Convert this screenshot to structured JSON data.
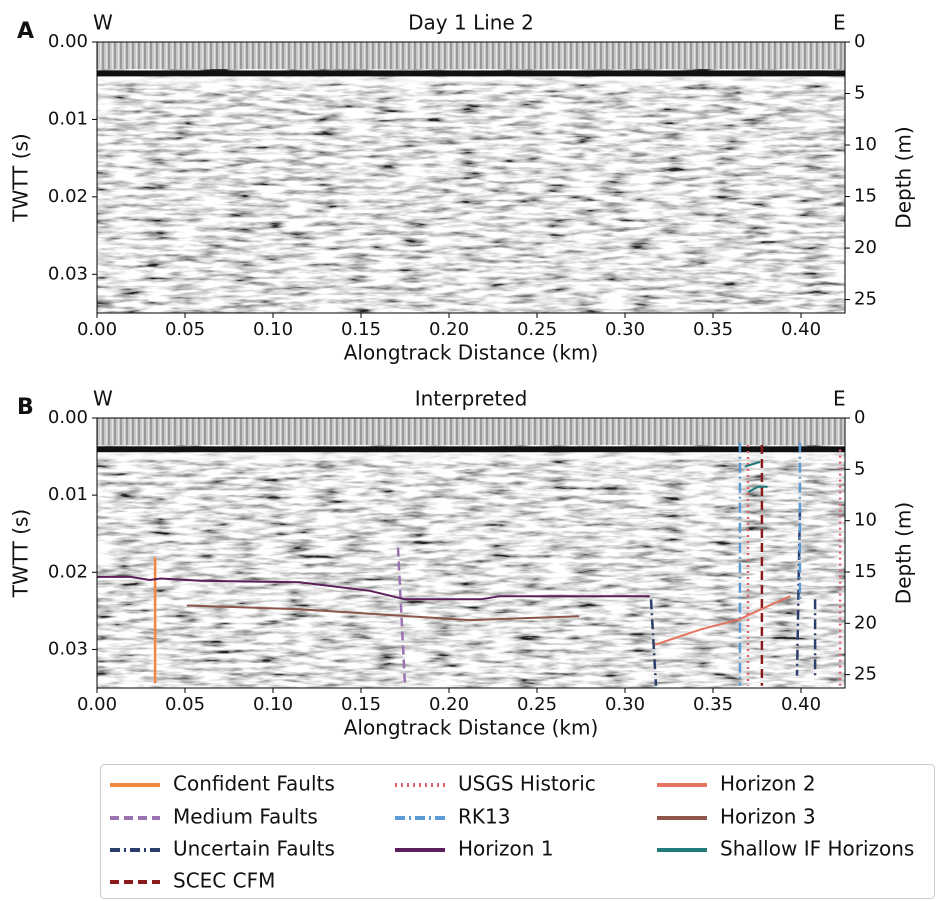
{
  "chart_data": [
    {
      "type": "line",
      "label": "A",
      "title": "Day 1 Line 2",
      "left_label": "W",
      "right_label": "E",
      "xlabel": "Alongtrack Distance (km)",
      "ylabel": "TWTT (s)",
      "y2label": "Depth (m)",
      "xlim": [
        0,
        0.425
      ],
      "xticks": [
        {
          "value": 0,
          "label": "0.00"
        },
        0.05,
        {
          "value": 0.1,
          "label": "0.10"
        },
        0.15,
        {
          "value": 0.2,
          "label": "0.20"
        },
        0.25,
        {
          "value": 0.3,
          "label": "0.30"
        },
        0.35,
        {
          "value": 0.4,
          "label": "0.40"
        }
      ],
      "ylim": [
        0.035,
        0
      ],
      "yticks": [
        {
          "value": 0,
          "label": "0.00"
        },
        0.01,
        0.02,
        0.03
      ],
      "y2lim": [
        26.3,
        0
      ],
      "y2ticks": [
        0,
        5,
        10,
        15,
        20,
        25
      ],
      "grid": false,
      "series": []
    },
    {
      "type": "line",
      "label": "B",
      "title": "Interpreted",
      "left_label": "W",
      "right_label": "E",
      "xlabel": "Alongtrack Distance (km)",
      "ylabel": "TWTT (s)",
      "y2label": "Depth (m)",
      "xlim": [
        0,
        0.425
      ],
      "xticks": [
        {
          "value": 0,
          "label": "0.00"
        },
        0.05,
        {
          "value": 0.1,
          "label": "0.10"
        },
        0.15,
        {
          "value": 0.2,
          "label": "0.20"
        },
        0.25,
        {
          "value": 0.3,
          "label": "0.30"
        },
        0.35,
        {
          "value": 0.4,
          "label": "0.40"
        }
      ],
      "ylim": [
        0.035,
        0
      ],
      "yticks": [
        {
          "value": 0,
          "label": "0.00"
        },
        0.01,
        0.02,
        0.03
      ],
      "y2lim": [
        26.3,
        0
      ],
      "y2ticks": [
        0,
        5,
        10,
        15,
        20,
        25
      ],
      "grid": false,
      "legend": "below",
      "series": [
        {
          "name": "Confident Faults",
          "color": "#f4873f",
          "dash": "solid",
          "x": [
            0.033,
            0.033
          ],
          "values": [
            0.0181,
            0.0344
          ]
        },
        {
          "name": "Medium Faults",
          "color": "#9b72b0",
          "dash": "dashed",
          "x": [
            0.171,
            0.175
          ],
          "values": [
            0.0168,
            0.0347
          ]
        },
        {
          "name": "Uncertain Faults",
          "color": "#2c3e6b",
          "dash": "dashdot",
          "x": [
            0.3148,
            0.3176,
            null,
            0.3994,
            0.3977,
            null,
            0.408,
            0.408
          ],
          "values": [
            0.0235,
            0.0347,
            null,
            0.0119,
            0.0334,
            null,
            0.0235,
            0.0334
          ]
        },
        {
          "name": "SCEC CFM",
          "color": "#8b1a1a",
          "dash": "dashed",
          "x": [
            0.3778,
            0.3778
          ],
          "values": [
            0.0035,
            0.0347
          ]
        },
        {
          "name": "USGS Historic",
          "color": "#e06070",
          "dash": "dotted",
          "x": [
            0.3699,
            0.3699,
            null,
            0.4222,
            0.4222
          ],
          "values": [
            0.0035,
            0.0347,
            null,
            0.0041,
            0.0347
          ]
        },
        {
          "name": "RK13",
          "color": "#5b9bd5",
          "dash": "dashdot",
          "x": [
            0.3653,
            0.3653,
            null,
            0.3994,
            0.3994
          ],
          "values": [
            0.0032,
            0.0347,
            null,
            0.0032,
            0.0235
          ]
        },
        {
          "name": "Horizon 1",
          "color": "#5c1f5c",
          "dash": "solid",
          "x": [
            0,
            0.019,
            0.03,
            0.036,
            0.0585,
            0.115,
            0.155,
            0.175,
            0.218,
            0.229,
            0.314
          ],
          "values": [
            0.0206,
            0.0206,
            0.021,
            0.0208,
            0.0211,
            0.0213,
            0.0224,
            0.0235,
            0.0235,
            0.0231,
            0.0231
          ]
        },
        {
          "name": "Horizon 2",
          "color": "#e5735f",
          "dash": "solid",
          "x": [
            0.317,
            0.343,
            0.365,
            0.382,
            0.394
          ],
          "values": [
            0.0294,
            0.0274,
            0.0261,
            0.0243,
            0.0231
          ]
        },
        {
          "name": "Horizon 3",
          "color": "#8c564b",
          "dash": "solid",
          "x": [
            0.051,
            0.115,
            0.212,
            0.274
          ],
          "values": [
            0.0243,
            0.0248,
            0.0262,
            0.0257
          ]
        },
        {
          "name": "Shallow IF Horizons",
          "color": "#1f7a7a",
          "dash": "solid",
          "x": [
            0.368,
            0.3767,
            null,
            0.37,
            0.3756,
            0.381
          ],
          "values": [
            0.0063,
            0.0057,
            null,
            0.0096,
            0.0089,
            0.0089
          ]
        }
      ]
    }
  ]
}
